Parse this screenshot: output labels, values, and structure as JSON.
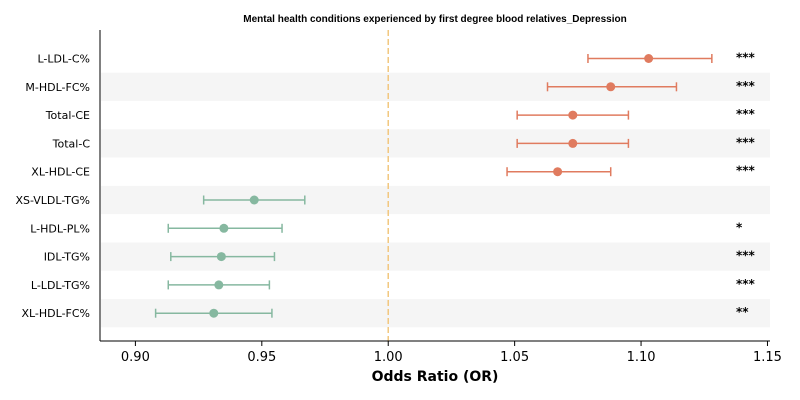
{
  "chart_data": {
    "type": "forest",
    "title": "Mental health conditions experienced by first degree blood relatives_Depression",
    "xlabel": "Odds Ratio (OR)",
    "xlim": [
      0.886,
      1.151
    ],
    "xticks": [
      0.9,
      0.95,
      1.0,
      1.05,
      1.1,
      1.15
    ],
    "xtick_labels": [
      "0.90",
      "0.95",
      "1.00",
      "1.05",
      "1.10",
      "1.15"
    ],
    "reference_line": 1.0,
    "colors": {
      "positive": "#E07B5F",
      "negative": "#86B8A0",
      "reference": "#F2C77E",
      "stripe": "#F5F5F5"
    },
    "rows": [
      {
        "label": "L-LDL-C%",
        "or": 1.103,
        "ci_low": 1.079,
        "ci_high": 1.128,
        "sig": "***"
      },
      {
        "label": "M-HDL-FC%",
        "or": 1.088,
        "ci_low": 1.063,
        "ci_high": 1.114,
        "sig": "***"
      },
      {
        "label": "Total-CE",
        "or": 1.073,
        "ci_low": 1.051,
        "ci_high": 1.095,
        "sig": "***"
      },
      {
        "label": "Total-C",
        "or": 1.073,
        "ci_low": 1.051,
        "ci_high": 1.095,
        "sig": "***"
      },
      {
        "label": "XL-HDL-CE",
        "or": 1.067,
        "ci_low": 1.047,
        "ci_high": 1.088,
        "sig": "***"
      },
      {
        "label": "XS-VLDL-TG%",
        "or": 0.947,
        "ci_low": 0.927,
        "ci_high": 0.967,
        "sig": ""
      },
      {
        "label": "L-HDL-PL%",
        "or": 0.935,
        "ci_low": 0.913,
        "ci_high": 0.958,
        "sig": "*"
      },
      {
        "label": "IDL-TG%",
        "or": 0.934,
        "ci_low": 0.914,
        "ci_high": 0.955,
        "sig": "***"
      },
      {
        "label": "L-LDL-TG%",
        "or": 0.933,
        "ci_low": 0.913,
        "ci_high": 0.953,
        "sig": "***"
      },
      {
        "label": "XL-HDL-FC%",
        "or": 0.931,
        "ci_low": 0.908,
        "ci_high": 0.954,
        "sig": "**"
      }
    ]
  }
}
